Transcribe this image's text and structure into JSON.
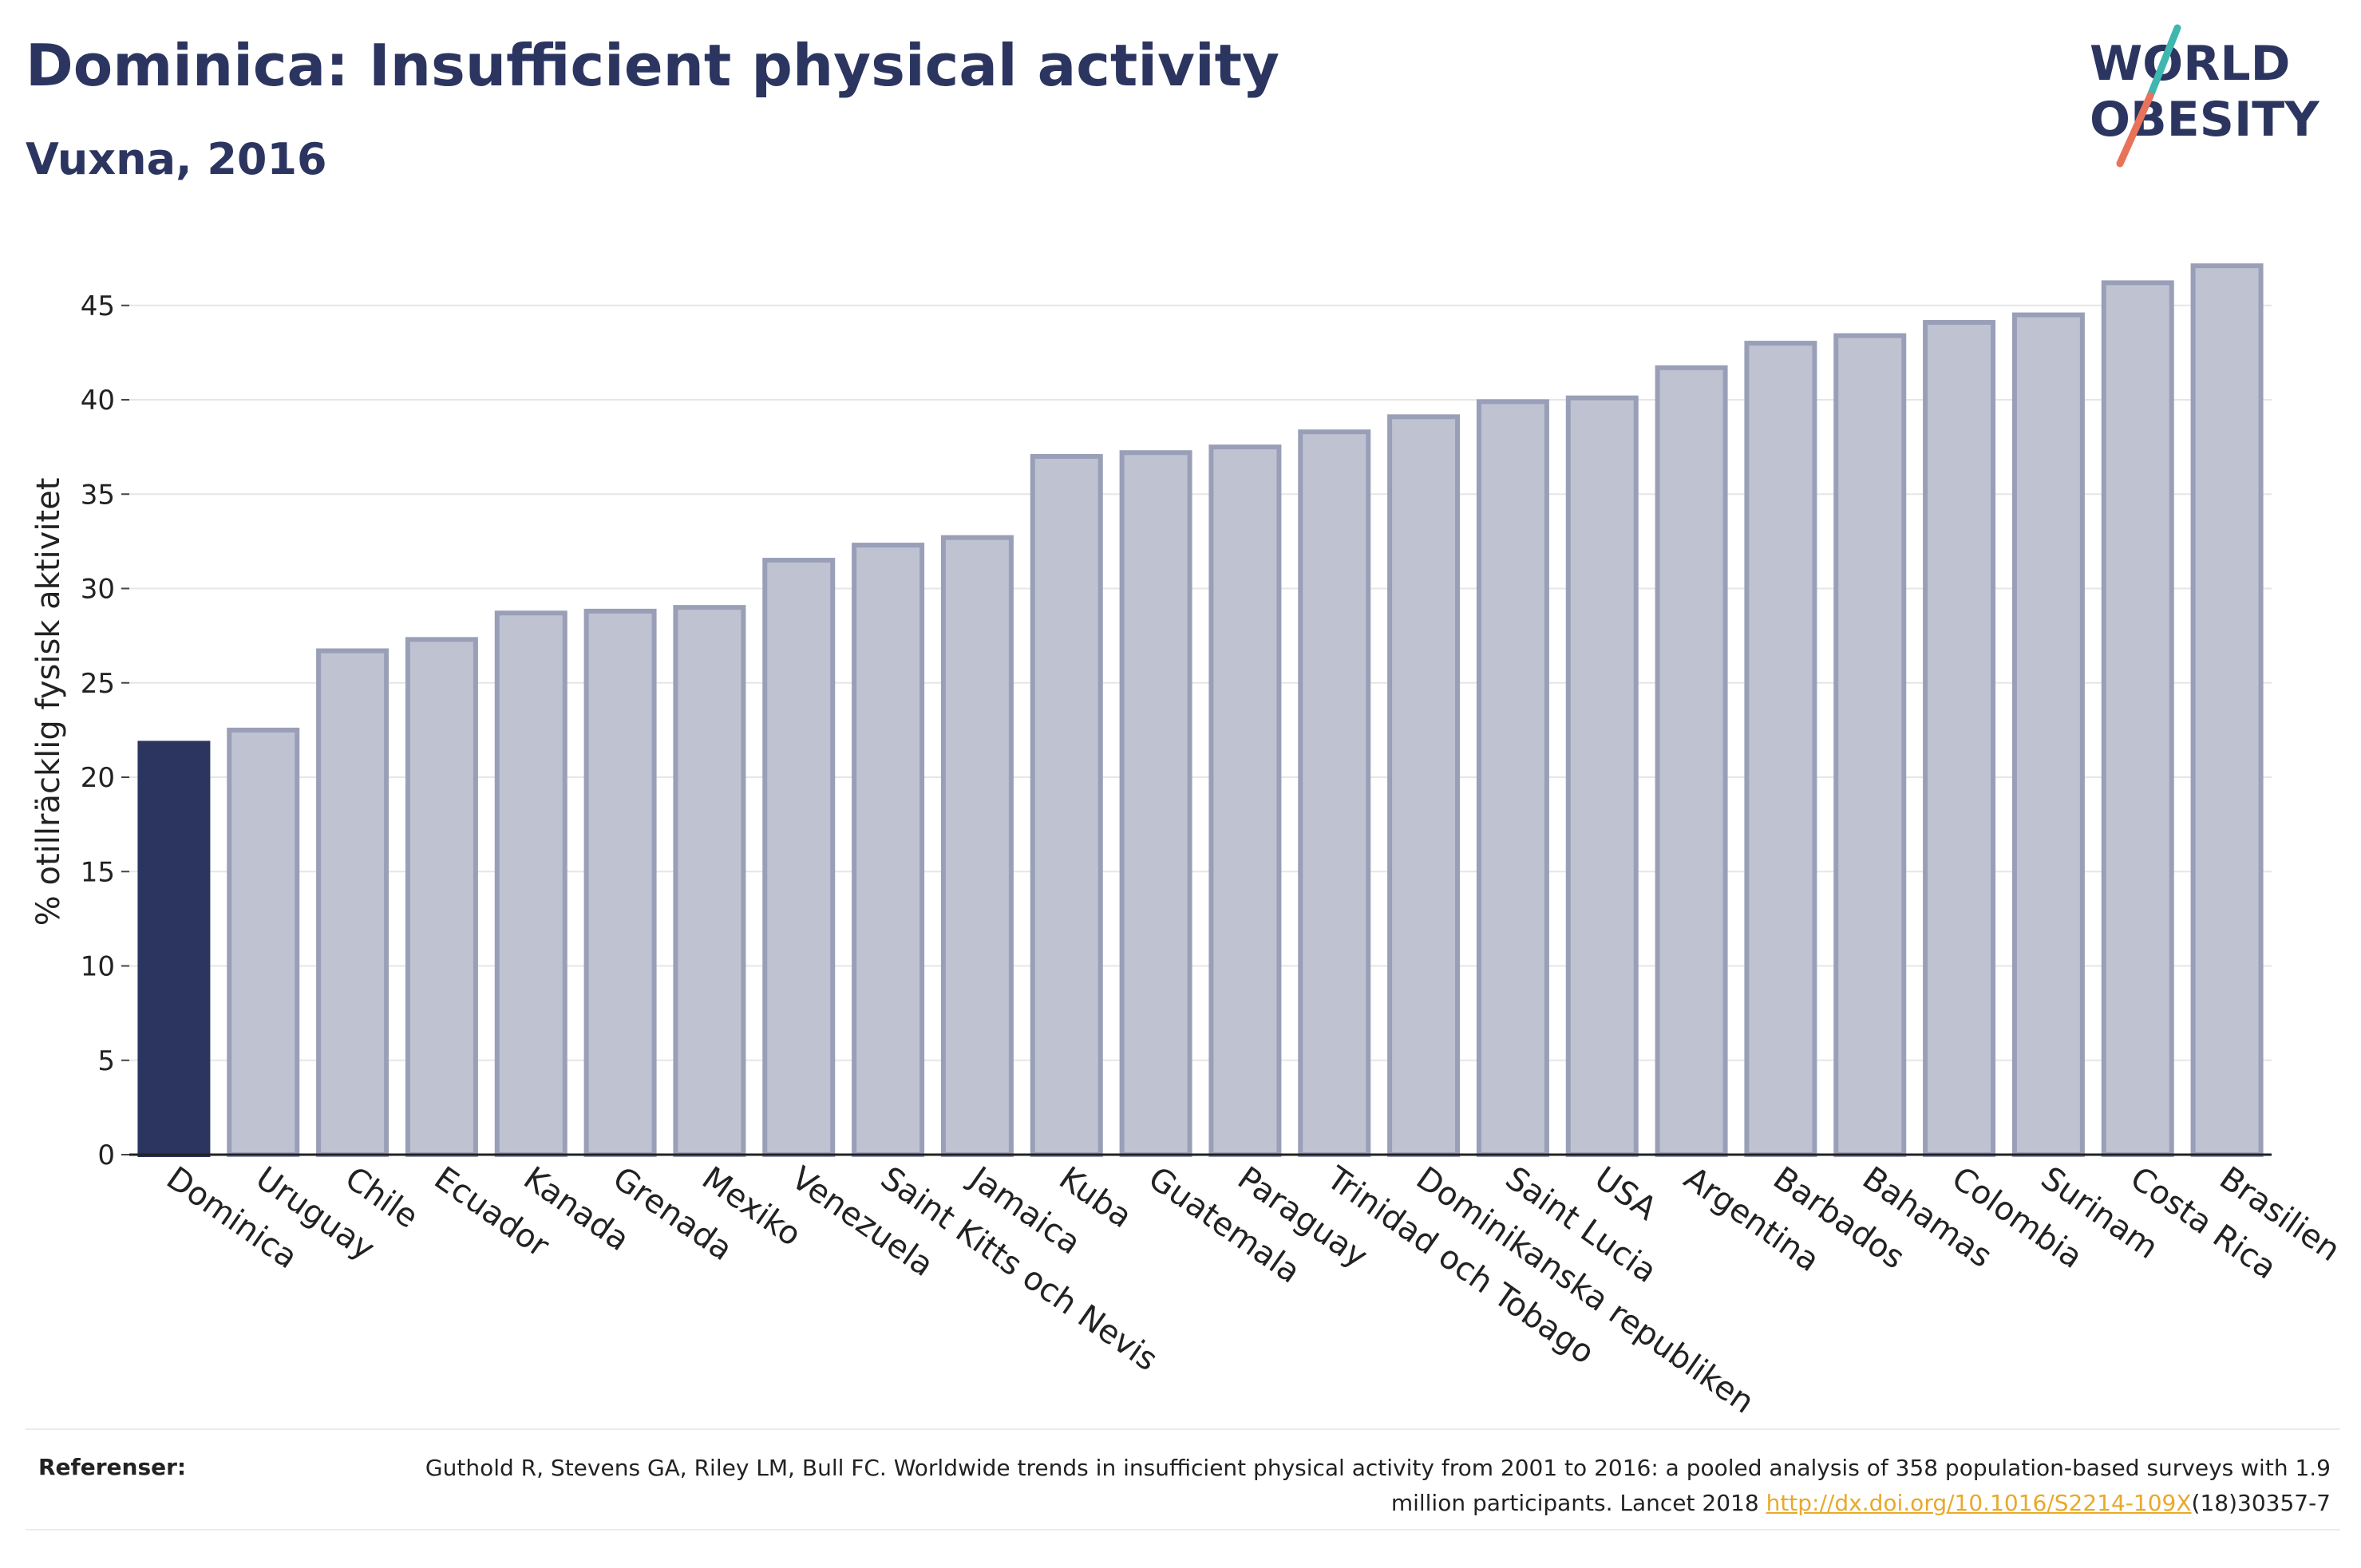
{
  "header": {
    "title": "Dominica: Insufficient physical activity",
    "subtitle": "Vuxna, 2016"
  },
  "logo": {
    "line1": "WORLD",
    "line2": "OBESITY",
    "colors": {
      "text": "#2b3560",
      "slash_teal": "#3fb6b0",
      "slash_coral": "#e8735a"
    }
  },
  "chart_data": {
    "type": "bar",
    "ylabel": "% otillräcklig fysisk aktivitet",
    "xlabel": "",
    "ylim": [
      0,
      48
    ],
    "yticks": [
      0,
      5,
      10,
      15,
      20,
      25,
      30,
      35,
      40,
      45
    ],
    "grid": true,
    "highlight": "Dominica",
    "colors": {
      "highlight": "#2b3560",
      "bar": "#bfc2d0",
      "bar_edge": "#9a9fb8",
      "grid": "#e6e6e6"
    },
    "categories": [
      "Dominica",
      "Uruguay",
      "Chile",
      "Ecuador",
      "Kanada",
      "Grenada",
      "Mexiko",
      "Venezuela",
      "Saint Kitts och Nevis",
      "Jamaica",
      "Kuba",
      "Guatemala",
      "Paraguay",
      "Trinidad och Tobago",
      "Dominikanska republiken",
      "Saint Lucia",
      "USA",
      "Argentina",
      "Barbados",
      "Bahamas",
      "Colombia",
      "Surinam",
      "Costa Rica",
      "Brasilien"
    ],
    "values": [
      21.8,
      22.5,
      26.7,
      27.3,
      28.7,
      28.8,
      29.0,
      31.5,
      32.3,
      32.7,
      37.0,
      37.2,
      37.5,
      38.3,
      39.1,
      39.9,
      40.1,
      41.7,
      43.0,
      43.4,
      44.1,
      44.5,
      46.2,
      47.1
    ]
  },
  "references": {
    "label": "Referenser:",
    "text_before_link": "Guthold R, Stevens GA, Riley LM, Bull FC. Worldwide trends in insufficient physical activity from 2001 to 2016: a pooled analysis of 358 population-based surveys with 1.9 million participants. Lancet 2018 ",
    "link_text": "http://dx.doi.org/10.1016/S2214-109X",
    "text_after_link": "(18)30357-7"
  }
}
